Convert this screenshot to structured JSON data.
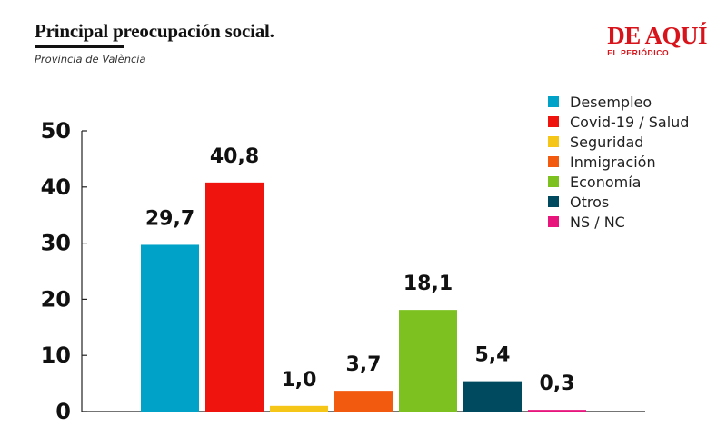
{
  "header": {
    "title": "Principal preocupación social.",
    "subtitle": "Provincia de València"
  },
  "brand": {
    "name": "DE AQUÍ",
    "tagline": "EL PERIÓDICO",
    "color": "#d7141b"
  },
  "chart_data": {
    "type": "bar",
    "title": "Principal preocupación social.",
    "subtitle": "Provincia de València",
    "xlabel": "",
    "ylabel": "",
    "ylim": [
      0,
      50
    ],
    "yticks": [
      "0",
      "10",
      "20",
      "30",
      "40",
      "50"
    ],
    "grid": false,
    "legend_position": "top-right",
    "categories": [
      "Desempleo",
      "Covid-19 / Salud",
      "Seguridad",
      "Inmigración",
      "Economía",
      "Otros",
      "NS / NC"
    ],
    "values": [
      29.7,
      40.8,
      1.0,
      3.7,
      18.1,
      5.4,
      0.3
    ],
    "value_labels": [
      "29,7",
      "40,8",
      "1,0",
      "3,7",
      "18,1",
      "5,4",
      "0,3"
    ],
    "colors": [
      "#00a3c7",
      "#f0140f",
      "#f5c518",
      "#f25a10",
      "#7cc11f",
      "#004a5f",
      "#e8157c"
    ]
  }
}
